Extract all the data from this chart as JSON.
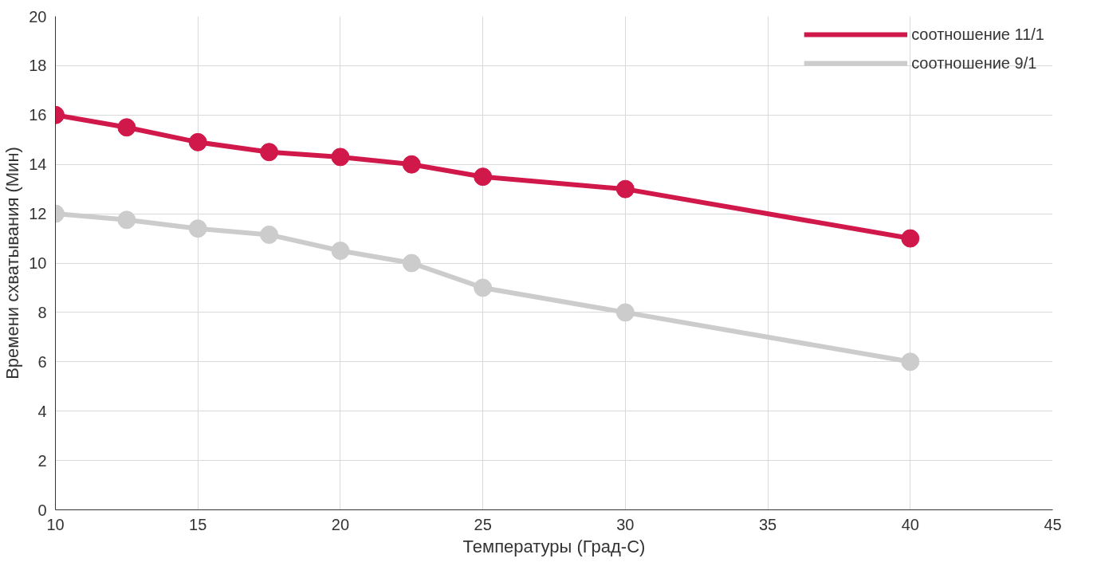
{
  "chart_data": {
    "type": "line",
    "xlabel": "Температуры (Град-С)",
    "ylabel": "Времени схватывания (Мин)",
    "xlim": [
      10,
      45
    ],
    "xticks": [
      10,
      15,
      20,
      25,
      30,
      35,
      40,
      45
    ],
    "ylim": [
      0,
      20
    ],
    "yticks": [
      0,
      2,
      4,
      6,
      8,
      10,
      12,
      14,
      16,
      18,
      20
    ],
    "grid": true,
    "legend": "top right",
    "marker": "circle",
    "line_style": "solid",
    "x": [
      10,
      12.5,
      15,
      17.5,
      20,
      22.5,
      25,
      30,
      40
    ],
    "series": [
      {
        "name": "соотношение 11/1",
        "color": "#d0184a",
        "values": [
          16,
          15.5,
          14.9,
          14.5,
          14.3,
          14,
          13.5,
          13,
          11
        ]
      },
      {
        "name": "соотношение 9/1",
        "color": "#cccccc",
        "values": [
          12,
          11.75,
          11.4,
          11.15,
          10.5,
          10,
          9,
          8,
          6
        ]
      }
    ]
  }
}
